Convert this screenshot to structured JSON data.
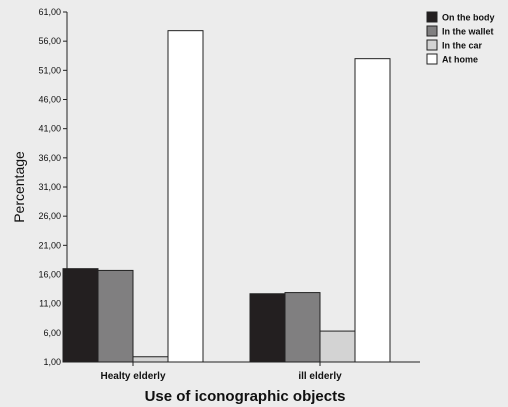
{
  "chart_data": {
    "type": "bar",
    "categories": [
      "Healty elderly",
      "ill elderly"
    ],
    "series": [
      {
        "name": "On the body",
        "values": [
          17.0,
          12.7
        ],
        "color": "#231f20"
      },
      {
        "name": "In the wallet",
        "values": [
          16.7,
          12.9
        ],
        "color": "#807f80"
      },
      {
        "name": "In the car",
        "values": [
          1.9,
          6.3
        ],
        "color": "#d3d3d3"
      },
      {
        "name": "At home",
        "values": [
          57.8,
          53.0
        ],
        "color": "#ffffff"
      }
    ],
    "ylabel": "Percentage",
    "xlabel": "Use of iconographic objects",
    "ylim": [
      1,
      61
    ],
    "yticks": [
      "1,00",
      "6,00",
      "11,00",
      "16,00",
      "21,00",
      "26,00",
      "31,00",
      "36,00",
      "41,00",
      "46,00",
      "51,00",
      "56,00",
      "61,00"
    ],
    "grid": false,
    "legend_position": "top-right"
  }
}
